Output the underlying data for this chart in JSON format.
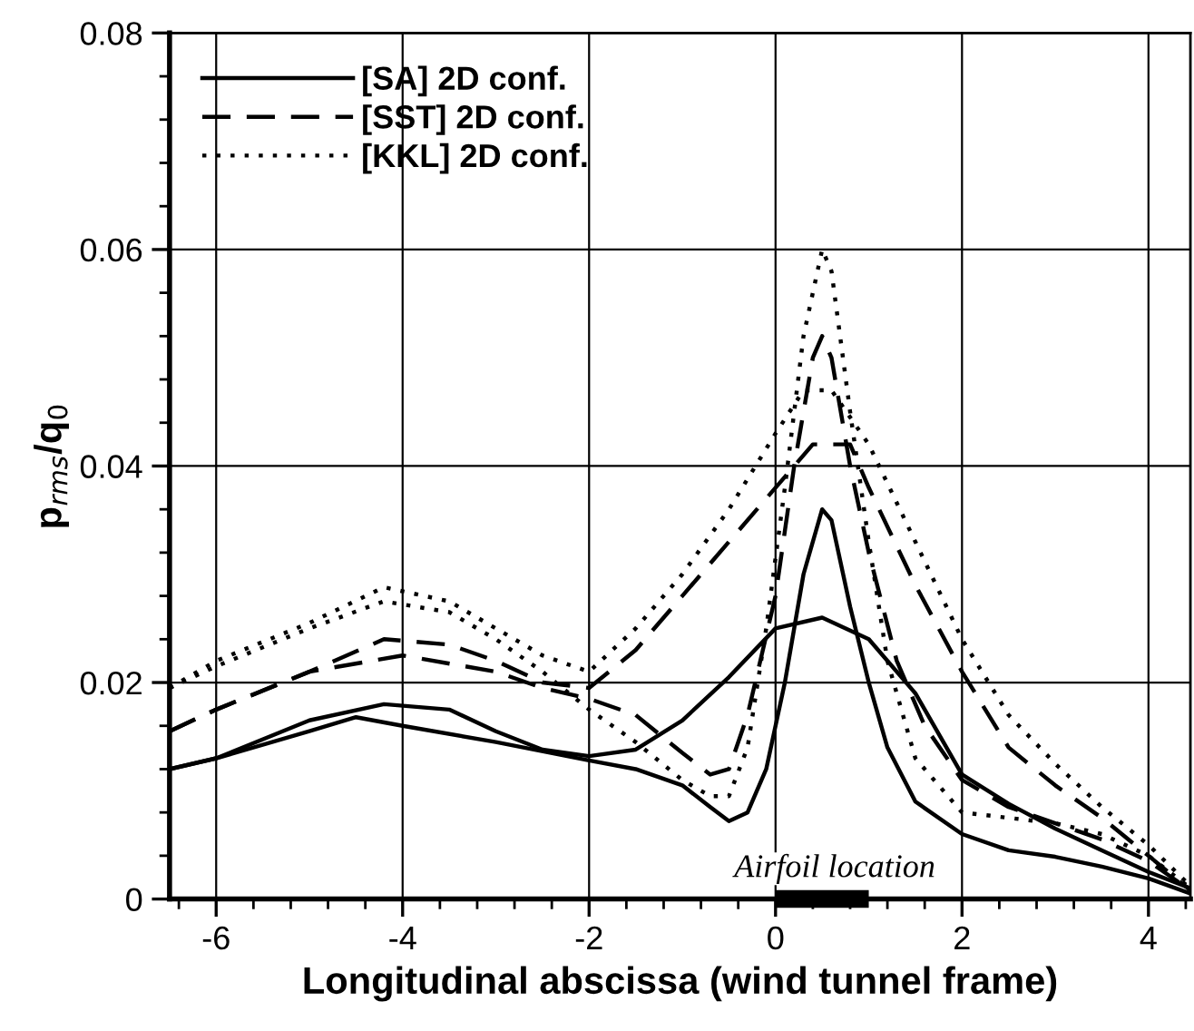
{
  "chart_data": {
    "type": "line",
    "xlabel": "Longitudinal abscissa (wind tunnel frame)",
    "ylabel": "p$_{rms}$/q$_{0}$",
    "xlim": [
      -6.5,
      4.45
    ],
    "ylim": [
      0,
      0.08
    ],
    "xticks": [
      -6,
      -4,
      -2,
      0,
      2,
      4
    ],
    "yticks": [
      0,
      0.02,
      0.04,
      0.06,
      0.08
    ],
    "grid": true,
    "legend": "top left",
    "series": [
      {
        "name": "[SA] 2D conf.",
        "color": "#000000",
        "line_style": "solid",
        "x": [
          -6.5,
          -6,
          -5,
          -4.5,
          -4,
          -3,
          -2,
          -1.5,
          -1,
          -0.7,
          -0.5,
          -0.3,
          -0.1,
          0.1,
          0.3,
          0.5,
          0.6,
          0.8,
          1.0,
          1.2,
          1.5,
          2.0,
          2.5,
          3,
          3.5,
          4,
          4.45
        ],
        "values": [
          0.012,
          0.013,
          0.0155,
          0.0168,
          0.016,
          0.0145,
          0.0128,
          0.012,
          0.0105,
          0.0085,
          0.0072,
          0.008,
          0.012,
          0.02,
          0.03,
          0.036,
          0.035,
          0.027,
          0.02,
          0.014,
          0.009,
          0.006,
          0.0045,
          0.0039,
          0.003,
          0.0019,
          0.0005
        ]
      },
      {
        "color": "#000000",
        "line_style": "solid",
        "x": [
          -6.5,
          -6,
          -5,
          -4.2,
          -3.5,
          -3,
          -2.5,
          -2,
          -1.5,
          -1,
          -0.5,
          0,
          0.5,
          1,
          1.5,
          2,
          2.5,
          3,
          3.5,
          4,
          4.45
        ],
        "values": [
          0.012,
          0.013,
          0.0165,
          0.018,
          0.0175,
          0.0155,
          0.0138,
          0.0132,
          0.0138,
          0.0165,
          0.0205,
          0.025,
          0.026,
          0.024,
          0.019,
          0.0115,
          0.0088,
          0.0065,
          0.0045,
          0.0025,
          0.001
        ]
      },
      {
        "name": "[SST] 2D conf.",
        "color": "#000000",
        "line_style": "dashed",
        "x": [
          -6.5,
          -6,
          -5,
          -4,
          -3,
          -2.5,
          -2,
          -1.5,
          -1,
          -0.7,
          -0.5,
          -0.3,
          0,
          0.2,
          0.4,
          0.5,
          0.6,
          0.8,
          1,
          1.3,
          1.6,
          2,
          2.5,
          3,
          3.5,
          4,
          4.45
        ],
        "values": [
          0.0155,
          0.0175,
          0.021,
          0.0225,
          0.021,
          0.0195,
          0.0185,
          0.017,
          0.0135,
          0.0115,
          0.012,
          0.017,
          0.028,
          0.04,
          0.05,
          0.052,
          0.05,
          0.04,
          0.032,
          0.022,
          0.016,
          0.011,
          0.0085,
          0.007,
          0.0055,
          0.0035,
          0.0008
        ]
      },
      {
        "color": "#000000",
        "line_style": "dashed",
        "x": [
          -6.5,
          -6,
          -5,
          -4.2,
          -3.5,
          -3,
          -2.5,
          -2,
          -1.5,
          -1,
          -0.5,
          0,
          0.2,
          0.4,
          0.8,
          1,
          1.5,
          2,
          2.5,
          3,
          3.5,
          4,
          4.45
        ],
        "values": [
          0.0155,
          0.0175,
          0.021,
          0.024,
          0.0235,
          0.022,
          0.02,
          0.0195,
          0.023,
          0.028,
          0.033,
          0.038,
          0.04,
          0.042,
          0.042,
          0.038,
          0.029,
          0.021,
          0.014,
          0.0105,
          0.0075,
          0.004,
          0.0008
        ]
      },
      {
        "name": "[KKL] 2D conf.",
        "color": "#000000",
        "line_style": "dotted",
        "x": [
          -6.5,
          -6,
          -5,
          -4.2,
          -3.5,
          -3,
          -2.5,
          -2,
          -1.5,
          -1,
          -0.7,
          -0.5,
          -0.3,
          -0.1,
          0.1,
          0.3,
          0.5,
          0.6,
          0.8,
          1.0,
          1.2,
          1.5,
          2,
          2.5,
          3,
          3.5,
          4,
          4.45
        ],
        "values": [
          0.0195,
          0.0215,
          0.025,
          0.0275,
          0.0265,
          0.024,
          0.021,
          0.0175,
          0.0145,
          0.011,
          0.0095,
          0.0095,
          0.014,
          0.025,
          0.038,
          0.052,
          0.06,
          0.058,
          0.045,
          0.033,
          0.022,
          0.013,
          0.008,
          0.0075,
          0.007,
          0.006,
          0.004,
          0.001
        ]
      },
      {
        "color": "#000000",
        "line_style": "dotted",
        "x": [
          -6.5,
          -6,
          -5,
          -4.2,
          -3.5,
          -3,
          -2.5,
          -2,
          -1.5,
          -1,
          -0.5,
          0,
          0.3,
          0.6,
          1,
          1.5,
          2,
          2.5,
          3,
          3.5,
          4,
          4.45
        ],
        "values": [
          0.0195,
          0.022,
          0.0255,
          0.0288,
          0.0275,
          0.025,
          0.0225,
          0.021,
          0.025,
          0.03,
          0.036,
          0.043,
          0.047,
          0.047,
          0.042,
          0.033,
          0.024,
          0.017,
          0.0125,
          0.0085,
          0.005,
          0.0012
        ]
      },
      {
        "color": "#000000",
        "line_style": "solid",
        "x": [
          0,
          1
        ],
        "values": [
          0,
          0
        ]
      }
    ],
    "annotations": [
      {
        "text": "Airfoil location",
        "x": 0.5,
        "y": 0
      }
    ]
  }
}
